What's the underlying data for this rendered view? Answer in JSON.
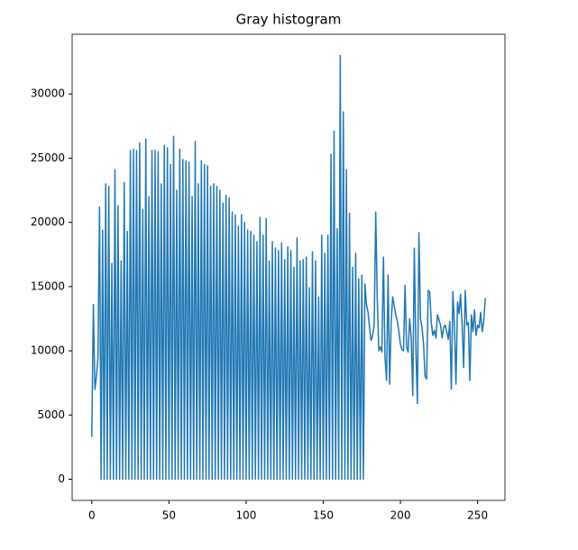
{
  "chart_data": {
    "type": "line",
    "title": "Gray histogram",
    "x": [
      0,
      1,
      2,
      3,
      4,
      5,
      6,
      7,
      8,
      9,
      10,
      11,
      12,
      13,
      14,
      15,
      16,
      17,
      18,
      19,
      20,
      21,
      22,
      23,
      24,
      25,
      26,
      27,
      28,
      29,
      30,
      31,
      32,
      33,
      34,
      35,
      36,
      37,
      38,
      39,
      40,
      41,
      42,
      43,
      44,
      45,
      46,
      47,
      48,
      49,
      50,
      51,
      52,
      53,
      54,
      55,
      56,
      57,
      58,
      59,
      60,
      61,
      62,
      63,
      64,
      65,
      66,
      67,
      68,
      69,
      70,
      71,
      72,
      73,
      74,
      75,
      76,
      77,
      78,
      79,
      80,
      81,
      82,
      83,
      84,
      85,
      86,
      87,
      88,
      89,
      90,
      91,
      92,
      93,
      94,
      95,
      96,
      97,
      98,
      99,
      100,
      101,
      102,
      103,
      104,
      105,
      106,
      107,
      108,
      109,
      110,
      111,
      112,
      113,
      114,
      115,
      116,
      117,
      118,
      119,
      120,
      121,
      122,
      123,
      124,
      125,
      126,
      127,
      128,
      129,
      130,
      131,
      132,
      133,
      134,
      135,
      136,
      137,
      138,
      139,
      140,
      141,
      142,
      143,
      144,
      145,
      146,
      147,
      148,
      149,
      150,
      151,
      152,
      153,
      154,
      155,
      156,
      157,
      158,
      159,
      160,
      161,
      162,
      163,
      164,
      165,
      166,
      167,
      168,
      169,
      170,
      171,
      172,
      173,
      174,
      175,
      176,
      177,
      178,
      179,
      180,
      181,
      182,
      183,
      184,
      185,
      186,
      187,
      188,
      189,
      190,
      191,
      192,
      193,
      194,
      195,
      196,
      197,
      198,
      199,
      200,
      201,
      202,
      203,
      204,
      205,
      206,
      207,
      208,
      209,
      210,
      211,
      212,
      213,
      214,
      215,
      216,
      217,
      218,
      219,
      220,
      221,
      222,
      223,
      224,
      225,
      226,
      227,
      228,
      229,
      230,
      231,
      232,
      233,
      234,
      235,
      236,
      237,
      238,
      239,
      240,
      241,
      242,
      243,
      244,
      245,
      246,
      247,
      248,
      249,
      250,
      251,
      252,
      253,
      254,
      255
    ],
    "series": [
      {
        "color": "#1f77b4",
        "values": [
          3300,
          13600,
          7000,
          8000,
          9500,
          21200,
          0,
          19400,
          0,
          23000,
          0,
          22800,
          0,
          16800,
          0,
          24100,
          0,
          21300,
          0,
          17000,
          0,
          23100,
          0,
          19300,
          0,
          25600,
          0,
          25700,
          0,
          25600,
          0,
          26200,
          0,
          21000,
          0,
          26500,
          0,
          22000,
          0,
          25600,
          0,
          25600,
          0,
          25500,
          0,
          23000,
          0,
          26000,
          0,
          25800,
          0,
          24500,
          0,
          26700,
          0,
          22500,
          0,
          25700,
          0,
          24900,
          0,
          24800,
          0,
          24700,
          0,
          22000,
          0,
          26300,
          0,
          23000,
          0,
          24800,
          0,
          24500,
          0,
          24400,
          0,
          22800,
          0,
          23000,
          0,
          22800,
          0,
          22500,
          0,
          21500,
          0,
          22100,
          0,
          21900,
          0,
          20800,
          0,
          20600,
          0,
          19700,
          0,
          20600,
          0,
          20000,
          0,
          19400,
          0,
          19300,
          0,
          19000,
          0,
          18500,
          0,
          20400,
          0,
          19000,
          0,
          20300,
          0,
          17000,
          0,
          18500,
          0,
          18000,
          0,
          17800,
          0,
          18400,
          0,
          17100,
          0,
          18100,
          0,
          17800,
          0,
          16500,
          0,
          18800,
          0,
          17000,
          0,
          17100,
          0,
          17300,
          0,
          14900,
          0,
          17700,
          0,
          17000,
          0,
          14200,
          0,
          19000,
          0,
          17600,
          0,
          19000,
          0,
          25300,
          0,
          27100,
          0,
          19500,
          0,
          33000,
          0,
          28600,
          0,
          24100,
          0,
          20700,
          0,
          16500,
          0,
          17600,
          0,
          15600,
          0,
          15900,
          0,
          15200,
          13600,
          13000,
          11800,
          10800,
          11200,
          12000,
          20800,
          14000,
          10000,
          10300,
          9900,
          17300,
          9500,
          7700,
          15900,
          7400,
          12200,
          14200,
          13500,
          12800,
          12300,
          11500,
          10500,
          10100,
          10000,
          15100,
          10300,
          9900,
          12500,
          11000,
          6500,
          18000,
          10200,
          5900,
          19200,
          12500,
          11800,
          10500,
          8000,
          7800,
          14700,
          14600,
          12200,
          11200,
          11600,
          11000,
          12800,
          12400,
          12000,
          11000,
          11800,
          12000,
          11500,
          10900,
          12300,
          7000,
          14600,
          12000,
          7400,
          13800,
          12900,
          14400,
          12000,
          8700,
          14700,
          12000,
          12200,
          7700,
          12800,
          11500,
          13200,
          11200,
          12000,
          11800,
          13000,
          11500,
          12300,
          14100
        ]
      }
    ],
    "xlim": [
      -12.75,
      267.75
    ],
    "ylim": [
      -1650,
      34650
    ],
    "xticks": [
      0,
      50,
      100,
      150,
      200,
      250
    ],
    "yticks": [
      0,
      5000,
      10000,
      15000,
      20000,
      25000,
      30000
    ]
  }
}
